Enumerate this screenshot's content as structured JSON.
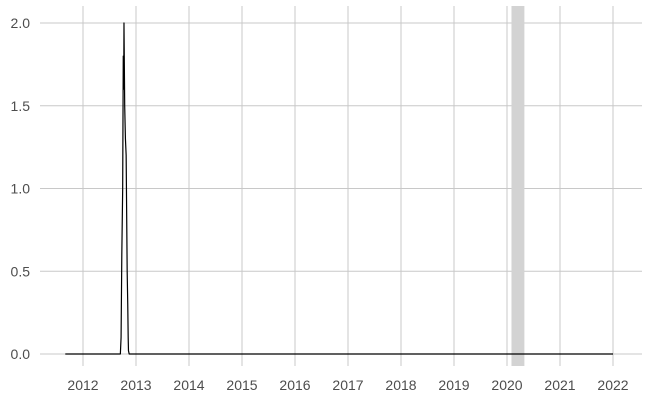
{
  "chart_data": {
    "type": "line",
    "title": "",
    "xlabel": "",
    "ylabel": "",
    "xlim": [
      "2011-09-01",
      "2022-01-01"
    ],
    "ylim": [
      0,
      2.0
    ],
    "x_ticks": [
      "2012",
      "2013",
      "2014",
      "2015",
      "2016",
      "2017",
      "2018",
      "2019",
      "2020",
      "2021",
      "2022"
    ],
    "y_ticks": [
      "0.0",
      "0.5",
      "1.0",
      "1.5",
      "2.0"
    ],
    "grid": true,
    "legend": "none",
    "colors": {
      "line": "#000000",
      "grid": "#c8c8c8",
      "shade": "#d3d3d3",
      "tick_text": "#4d4d4d"
    },
    "shaded_regions": [
      {
        "start": "2020-02-01",
        "end": "2020-04-30"
      }
    ],
    "series": [
      {
        "x": [
          "2011-09-01",
          "2012-09-15",
          "2012-09-20",
          "2012-09-25",
          "2012-10-01",
          "2012-10-05",
          "2012-10-08",
          "2012-10-10",
          "2012-10-12",
          "2012-10-15",
          "2012-10-20",
          "2012-10-25",
          "2012-11-01",
          "2012-11-05",
          "2012-11-08",
          "2012-11-10",
          "2012-11-15",
          "2022-01-01"
        ],
        "values": [
          0,
          0,
          0.1,
          0.6,
          1.0,
          1.8,
          1.6,
          2.0,
          1.8,
          1.5,
          1.3,
          1.2,
          0.5,
          0.3,
          0.1,
          0.02,
          0,
          0
        ]
      }
    ]
  }
}
